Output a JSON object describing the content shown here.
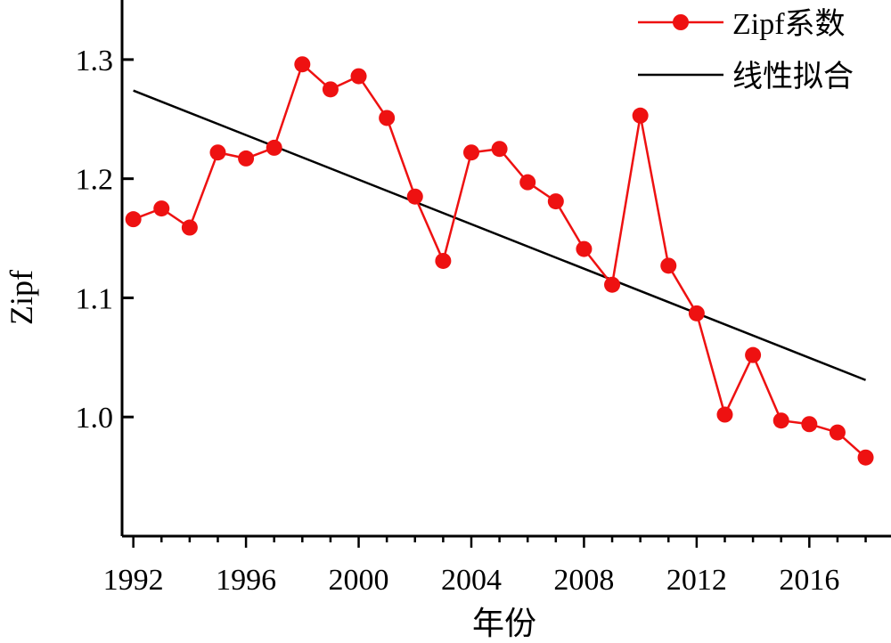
{
  "chart_data": {
    "type": "line",
    "title": "",
    "xlabel": "年份",
    "ylabel": "Zipf",
    "xlim": [
      1991.6,
      2018.9
    ],
    "ylim": [
      0.9,
      1.35
    ],
    "x_ticks": [
      1992,
      1996,
      2000,
      2004,
      2008,
      2012,
      2016
    ],
    "x_tick_labels": [
      "1992",
      "1996",
      "2000",
      "2004",
      "2008",
      "2012",
      "2016"
    ],
    "y_ticks": [
      1.0,
      1.1,
      1.2,
      1.3
    ],
    "y_tick_labels": [
      "1.0",
      "1.1",
      "1.2",
      "1.3"
    ],
    "grid": false,
    "legend_position": "top-right",
    "series": [
      {
        "name": "Zipf系数",
        "style": "line-markers",
        "color": "#ee1111",
        "x": [
          1992,
          1993,
          1994,
          1995,
          1996,
          1997,
          1998,
          1999,
          2000,
          2001,
          2002,
          2003,
          2004,
          2005,
          2006,
          2007,
          2008,
          2009,
          2010,
          2011,
          2012,
          2013,
          2014,
          2015,
          2016,
          2017,
          2018
        ],
        "values": [
          1.166,
          1.175,
          1.159,
          1.222,
          1.217,
          1.226,
          1.296,
          1.275,
          1.286,
          1.251,
          1.185,
          1.131,
          1.222,
          1.225,
          1.197,
          1.181,
          1.141,
          1.111,
          1.253,
          1.127,
          1.087,
          1.002,
          1.052,
          0.997,
          0.994,
          0.987,
          0.966
        ]
      },
      {
        "name": "线性拟合",
        "style": "line",
        "color": "#000000",
        "x": [
          1992,
          2018
        ],
        "values": [
          1.274,
          1.031
        ]
      }
    ]
  }
}
